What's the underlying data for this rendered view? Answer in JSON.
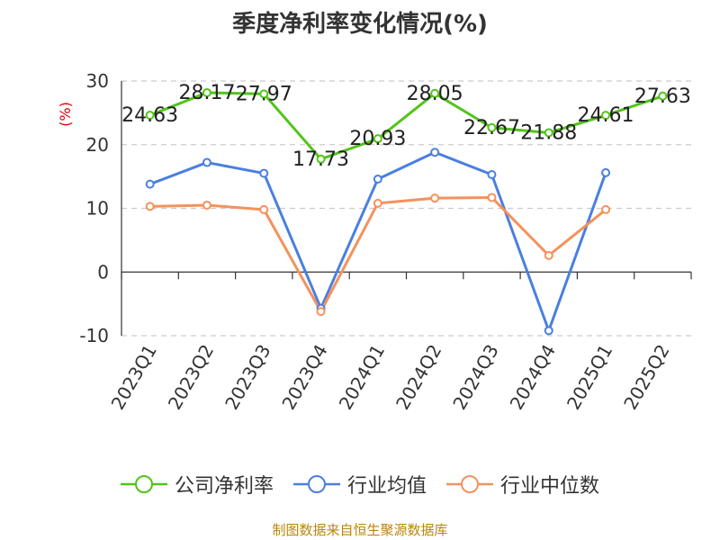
{
  "title": "季度净利率变化情况(%)",
  "source": "制图数据来自恒生聚源数据库",
  "chart_data": {
    "type": "line",
    "ylabel": "(%)",
    "ylim": [
      -10,
      30
    ],
    "yticks": [
      -10,
      0,
      10,
      20,
      30
    ],
    "grid": true,
    "legend_position": "bottom",
    "categories": [
      "2023Q1",
      "2023Q2",
      "2023Q3",
      "2023Q4",
      "2024Q1",
      "2024Q2",
      "2024Q3",
      "2024Q4",
      "2025Q1",
      "2025Q2"
    ],
    "series": [
      {
        "name": "公司净利率",
        "color": "#52c41a",
        "values": [
          24.63,
          28.17,
          27.97,
          17.73,
          20.93,
          28.05,
          22.67,
          21.88,
          24.61,
          27.63
        ],
        "labels": [
          "24.63",
          "28.17",
          "27.97",
          "17.73",
          "20.93",
          "28.05",
          "22.67",
          "21.88",
          "24.61",
          "27.63"
        ]
      },
      {
        "name": "行业均值",
        "color": "#4a7fe0",
        "values": [
          13.8,
          17.2,
          15.5,
          -5.7,
          14.6,
          18.8,
          15.3,
          -9.2,
          15.6,
          null
        ]
      },
      {
        "name": "行业中位数",
        "color": "#f4925c",
        "values": [
          10.3,
          10.5,
          9.8,
          -6.2,
          10.8,
          11.6,
          11.7,
          2.6,
          9.8,
          null
        ]
      }
    ]
  }
}
